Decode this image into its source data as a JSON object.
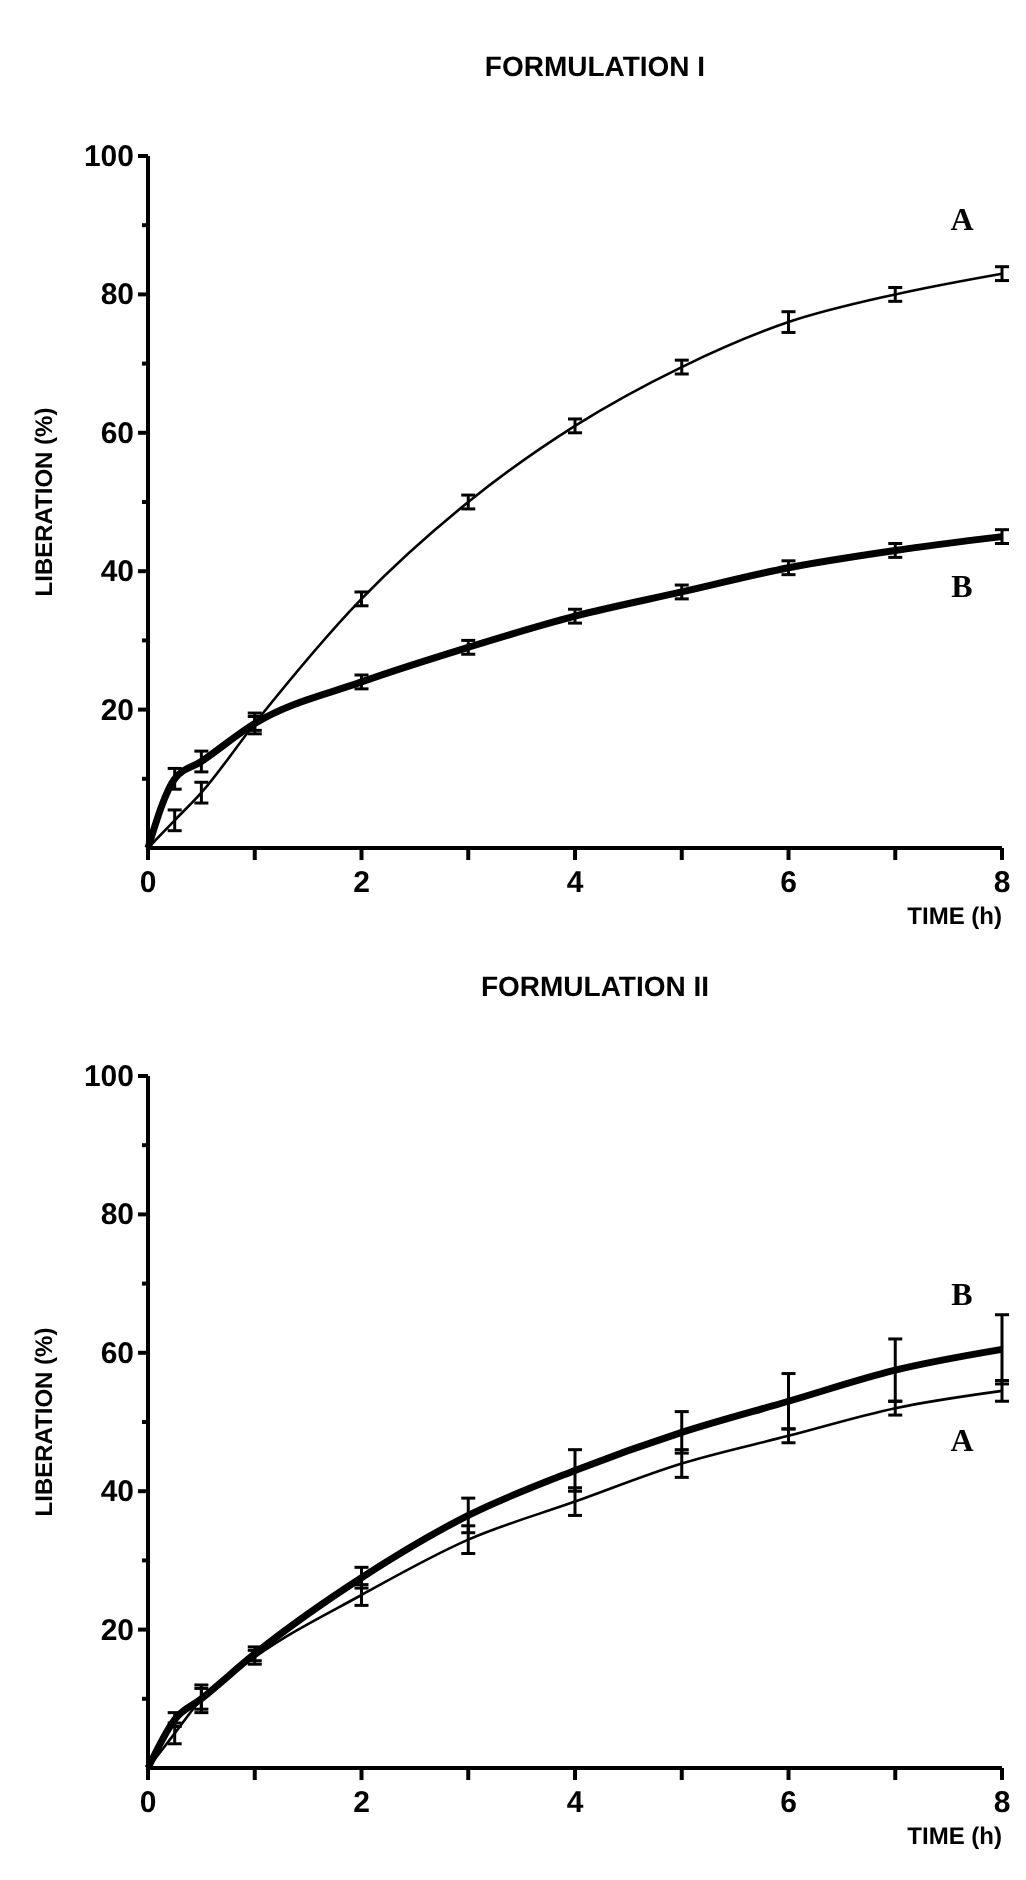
{
  "chart_data": [
    {
      "type": "line",
      "title": "FORMULATION I",
      "xlabel": "TIME (h)",
      "ylabel": "LIBERATION (%)",
      "xlim": [
        0,
        8
      ],
      "ylim": [
        0,
        100
      ],
      "xticks": [
        0,
        {
          "value": 1,
          "label": null
        },
        2,
        {
          "value": 3,
          "label": null
        },
        4,
        {
          "value": 5,
          "label": null
        },
        6,
        {
          "value": 7,
          "label": null
        },
        8
      ],
      "yticks": [
        {
          "value": 10,
          "label": null
        },
        20,
        {
          "value": 30,
          "label": null
        },
        40,
        {
          "value": 50,
          "label": null
        },
        60,
        {
          "value": 70,
          "label": null
        },
        80,
        {
          "value": 90,
          "label": null
        },
        100
      ],
      "grid": false,
      "legend": false,
      "marker": "none",
      "x": [
        0,
        0.25,
        0.5,
        1,
        2,
        3,
        4,
        5,
        6,
        7,
        8
      ],
      "series": [
        {
          "name": "A",
          "color": "#000000",
          "values": [
            0,
            4,
            8,
            18,
            36,
            50,
            61,
            69.5,
            76,
            80,
            83
          ],
          "errors": [
            null,
            1.5,
            1.5,
            1,
            1,
            1,
            1,
            1,
            1.5,
            1,
            1
          ]
        },
        {
          "name": "B",
          "color": "#000000",
          "values": [
            0,
            10,
            12.5,
            18,
            24,
            29,
            33.5,
            37,
            40.5,
            43,
            45
          ],
          "errors": [
            null,
            1.5,
            1.5,
            1.5,
            1,
            1,
            1,
            1,
            1,
            1,
            1
          ]
        }
      ]
    },
    {
      "type": "line",
      "title": "FORMULATION II",
      "xlabel": "TIME (h)",
      "ylabel": "LIBERATION (%)",
      "xlim": [
        0,
        8
      ],
      "ylim": [
        0,
        100
      ],
      "xticks": [
        0,
        {
          "value": 1,
          "label": null
        },
        2,
        {
          "value": 3,
          "label": null
        },
        4,
        {
          "value": 5,
          "label": null
        },
        6,
        {
          "value": 7,
          "label": null
        },
        8
      ],
      "yticks": [
        {
          "value": 10,
          "label": null
        },
        20,
        {
          "value": 30,
          "label": null
        },
        40,
        {
          "value": 50,
          "label": null
        },
        60,
        {
          "value": 70,
          "label": null
        },
        80,
        {
          "value": 90,
          "label": null
        },
        100
      ],
      "grid": false,
      "legend": false,
      "marker": "none",
      "x": [
        0,
        0.25,
        0.5,
        1,
        2,
        3,
        4,
        5,
        6,
        7,
        8
      ],
      "series": [
        {
          "name": "A",
          "color": "#000000",
          "values": [
            0,
            5,
            10,
            16,
            25,
            33,
            38.5,
            44,
            48,
            52,
            54.5
          ],
          "errors": [
            null,
            1.5,
            1.5,
            1,
            1.5,
            2,
            2,
            2,
            1,
            1,
            1.5
          ]
        },
        {
          "name": "B",
          "color": "#000000",
          "values": [
            0,
            7,
            10,
            16.5,
            27.5,
            36.5,
            43,
            48.5,
            53,
            57.5,
            60.5
          ],
          "errors": [
            null,
            1,
            2,
            1,
            1.5,
            2.5,
            3,
            3,
            4,
            4.5,
            5
          ]
        }
      ]
    }
  ]
}
